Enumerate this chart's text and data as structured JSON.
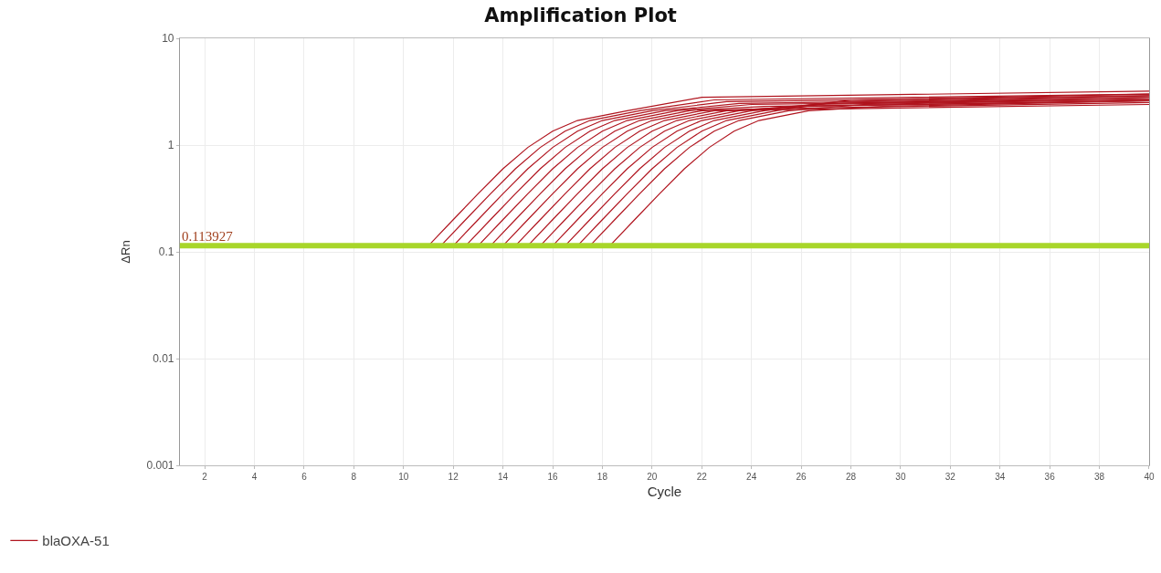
{
  "chart_data": {
    "type": "line",
    "title": "Amplification Plot",
    "xlabel": "Cycle",
    "ylabel": "ΔRn",
    "log": "y",
    "grid": true,
    "legend": "bottom left",
    "xlim": [
      1,
      40
    ],
    "xticks": [
      2,
      4,
      6,
      8,
      10,
      12,
      14,
      16,
      18,
      20,
      22,
      24,
      26,
      28,
      30,
      32,
      34,
      36,
      38,
      40
    ],
    "ylim": [
      0.001,
      10
    ],
    "yticks": [
      0.001,
      0.01,
      0.1,
      1,
      10
    ],
    "ref_lines": [
      {
        "axis": "y",
        "value": 0.113927,
        "label": "0.113927",
        "color": "#a8d62a"
      }
    ],
    "series": [
      {
        "name": "blaOXA-51",
        "color": "#b0141e",
        "x": [
          11,
          12,
          13,
          14,
          15,
          16,
          17,
          19,
          22,
          40
        ],
        "values": [
          0.114,
          0.2,
          0.35,
          0.6,
          0.95,
          1.35,
          1.7,
          2.1,
          2.8,
          3.2
        ]
      },
      {
        "color": "#b0141e",
        "x": [
          11.5,
          12.5,
          13.5,
          14.5,
          15.5,
          16.5,
          17.5,
          19.5,
          22.5,
          40
        ],
        "values": [
          0.114,
          0.2,
          0.35,
          0.6,
          0.95,
          1.35,
          1.7,
          2.1,
          2.65,
          3.0
        ]
      },
      {
        "color": "#b0141e",
        "x": [
          12,
          13,
          14,
          15,
          16,
          17,
          18,
          20,
          23,
          40
        ],
        "values": [
          0.114,
          0.2,
          0.35,
          0.6,
          0.95,
          1.35,
          1.7,
          2.1,
          2.55,
          2.9
        ]
      },
      {
        "color": "#b0141e",
        "x": [
          12.5,
          13.5,
          14.5,
          15.5,
          16.5,
          17.5,
          18.5,
          20.5,
          23.5,
          40
        ],
        "values": [
          0.114,
          0.2,
          0.35,
          0.6,
          0.95,
          1.35,
          1.7,
          2.1,
          2.45,
          2.8
        ]
      },
      {
        "color": "#b0141e",
        "x": [
          13,
          14,
          15,
          16,
          17,
          18,
          19,
          21,
          24,
          40
        ],
        "values": [
          0.114,
          0.2,
          0.35,
          0.6,
          0.95,
          1.35,
          1.7,
          2.1,
          2.4,
          2.7
        ]
      },
      {
        "color": "#b0141e",
        "x": [
          13.5,
          14.5,
          15.5,
          16.5,
          17.5,
          18.5,
          19.5,
          21.5,
          24.5,
          40
        ],
        "values": [
          0.114,
          0.2,
          0.35,
          0.6,
          0.95,
          1.35,
          1.7,
          2.1,
          2.3,
          2.6
        ]
      },
      {
        "color": "#b0141e",
        "x": [
          14,
          15,
          16,
          17,
          18,
          19,
          20,
          22,
          25,
          40
        ],
        "values": [
          0.114,
          0.2,
          0.35,
          0.6,
          0.95,
          1.35,
          1.7,
          2.1,
          2.2,
          2.5
        ]
      },
      {
        "color": "#b0141e",
        "x": [
          14.5,
          15.5,
          16.5,
          17.5,
          18.5,
          19.5,
          20.5,
          22.5,
          25.5,
          40
        ],
        "values": [
          0.114,
          0.2,
          0.35,
          0.6,
          0.95,
          1.35,
          1.7,
          2.1,
          2.15,
          2.4
        ]
      },
      {
        "color": "#b0141e",
        "x": [
          15,
          16,
          17,
          18,
          19,
          20,
          21,
          23,
          26,
          40
        ],
        "values": [
          0.114,
          0.2,
          0.35,
          0.6,
          0.95,
          1.35,
          1.7,
          2.1,
          2.3,
          2.6
        ]
      },
      {
        "color": "#b0141e",
        "x": [
          15.5,
          16.5,
          17.5,
          18.5,
          19.5,
          20.5,
          21.5,
          23.5,
          26.5,
          40
        ],
        "values": [
          0.114,
          0.2,
          0.35,
          0.6,
          0.95,
          1.35,
          1.7,
          2.1,
          2.4,
          2.7
        ]
      },
      {
        "color": "#b0141e",
        "x": [
          16,
          17,
          18,
          19,
          20,
          21,
          22,
          24,
          27,
          40
        ],
        "values": [
          0.114,
          0.2,
          0.35,
          0.6,
          0.95,
          1.35,
          1.7,
          2.1,
          2.45,
          2.8
        ]
      },
      {
        "color": "#b0141e",
        "x": [
          16.5,
          17.5,
          18.5,
          19.5,
          20.5,
          21.5,
          22.5,
          24.5,
          27.5,
          40
        ],
        "values": [
          0.114,
          0.2,
          0.35,
          0.6,
          0.95,
          1.35,
          1.7,
          2.1,
          2.55,
          2.9
        ]
      },
      {
        "color": "#b0141e",
        "x": [
          17,
          18,
          19,
          20,
          21,
          22,
          23,
          25,
          28,
          40
        ],
        "values": [
          0.114,
          0.2,
          0.35,
          0.6,
          0.95,
          1.35,
          1.7,
          2.1,
          2.65,
          3.0
        ]
      },
      {
        "color": "#b0141e",
        "x": [
          17.5,
          18.5,
          19.5,
          20.5,
          21.5,
          22.5,
          23.5,
          25.5,
          28.5,
          40
        ],
        "values": [
          0.114,
          0.2,
          0.35,
          0.6,
          0.95,
          1.35,
          1.7,
          2.1,
          2.4,
          2.7
        ]
      },
      {
        "color": "#b0141e",
        "x": [
          18.3,
          19.3,
          20.3,
          21.3,
          22.3,
          23.3,
          24.3,
          26.3,
          29.3,
          40
        ],
        "values": [
          0.114,
          0.2,
          0.35,
          0.6,
          0.95,
          1.35,
          1.7,
          2.1,
          2.3,
          2.6
        ]
      }
    ]
  }
}
